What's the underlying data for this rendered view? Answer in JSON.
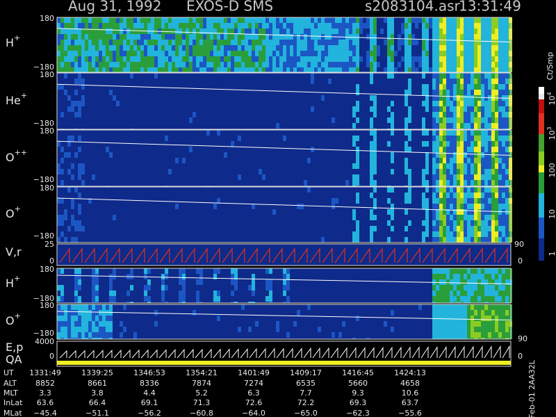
{
  "header": {
    "date": "Aug 31, 1992",
    "instrument": "EXOS-D SMS",
    "file": "s2083104.asr",
    "time": "13:31:49"
  },
  "panels": [
    {
      "ion": "H",
      "charge": "+",
      "top": "180",
      "bottom": "−180"
    },
    {
      "ion": "He",
      "charge": "+",
      "top": "180",
      "bottom": "−180"
    },
    {
      "ion": "O",
      "charge": "++",
      "top": "180",
      "bottom": "−180"
    },
    {
      "ion": "O",
      "charge": "+",
      "top": "180",
      "bottom": "−180"
    },
    {
      "ion": "V,r",
      "top": "25",
      "bottom": "0",
      "right_top": "90",
      "right_bottom": "0"
    },
    {
      "ion": "H",
      "charge": "+",
      "top": "180",
      "bottom": "−180"
    },
    {
      "ion": "O",
      "charge": "+",
      "top": "180",
      "bottom": "−180",
      "right_bottom": "90"
    },
    {
      "ion": "E,p",
      "ion2": "QA",
      "top": "4000",
      "bottom": "0",
      "right_bottom": "0"
    }
  ],
  "colorbar": {
    "unit": "Ct/Smp",
    "labels": [
      {
        "base": "10",
        "exp": "4"
      },
      {
        "base": "10",
        "exp": "3"
      },
      {
        "base": "100"
      },
      {
        "base": "10"
      },
      {
        "base": "1"
      }
    ]
  },
  "table": {
    "row_labels": [
      "UT",
      "ALT",
      "MLT",
      "InLat",
      "MLat"
    ],
    "rows": [
      [
        "1331:49",
        "1339:25",
        "1346:53",
        "1354:21",
        "1401:49",
        "1409:17",
        "1416:45",
        "1424:13"
      ],
      [
        "8852",
        "8661",
        "8336",
        "7874",
        "7274",
        "6535",
        "5660",
        "4658"
      ],
      [
        "3.3",
        "3.8",
        "4.4",
        "5.2",
        "6.3",
        "7.7",
        "9.3",
        "10.6"
      ],
      [
        "63.6",
        "66.4",
        "69.1",
        "71.3",
        "72.6",
        "72.2",
        "69.3",
        "63.7"
      ],
      [
        "−45.4",
        "−51.1",
        "−56.2",
        "−60.8",
        "−64.0",
        "−65.0",
        "−62.3",
        "−55.6"
      ]
    ]
  },
  "footer": "Feb-01 2AA32L"
}
